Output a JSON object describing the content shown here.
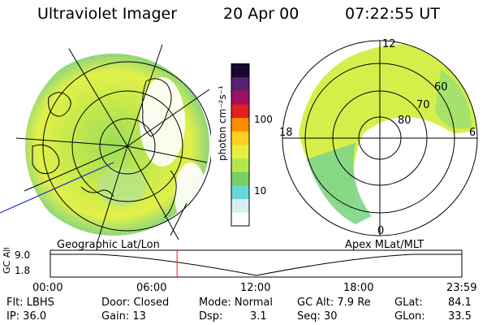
{
  "header": {
    "title": "Ultraviolet Imager",
    "date": "20 Apr 00",
    "time": "07:22:55 UT"
  },
  "colorbar": {
    "unit_label": "photon cm⁻²s⁻¹",
    "tick_100": "100",
    "tick_10": "10",
    "colors": [
      "#ffffff",
      "#d8f0f0",
      "#66d8d8",
      "#7ad064",
      "#b4e650",
      "#e6f040",
      "#ffd020",
      "#ff8c00",
      "#e02020",
      "#a01060",
      "#5a2070",
      "#180830"
    ]
  },
  "left_map": {
    "caption": "Geographic Lat/Lon"
  },
  "right_map": {
    "caption": "Apex MLat/MLT",
    "mlt_labels": {
      "top": "12",
      "left": "18",
      "right": "6",
      "bottom": "0"
    },
    "lat_labels": [
      "60",
      "70",
      "80"
    ]
  },
  "altitude_plot": {
    "axis_label": "GC Alt",
    "y_ticks": [
      "9.0",
      "1.8"
    ],
    "x_ticks": [
      "00:00",
      "06:00",
      "12:00",
      "18:00",
      "23:59"
    ],
    "current_marker_fraction": 0.308
  },
  "status": {
    "flt": "Flt: LBHS",
    "ip": "IP: 36.0",
    "door": "Door: Closed",
    "gain": "Gain: 13",
    "mode": "Mode: Normal",
    "dsp_label": "Dsp:",
    "dsp_value": "3.1",
    "gc_alt": "GC Alt: 7.9 Re",
    "seq": "Seq: 30",
    "glat_label": "GLat:",
    "glat_value": "84.1",
    "glon_label": "GLon:",
    "glon_value": "33.5"
  }
}
